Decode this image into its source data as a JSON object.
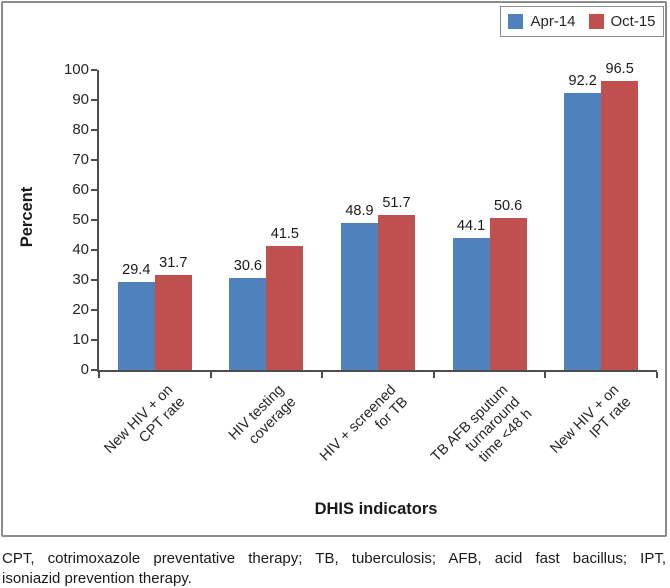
{
  "caption": {
    "line1": "CPT, cotrimoxazole preventative therapy; TB, tuberculosis; AFB, acid fast bacillus; IPT,",
    "line2": "isoniazid prevention therapy."
  },
  "chart_data": {
    "type": "bar",
    "categories": [
      "New HIV + on\nCPT rate",
      "HIV testing\ncoverage",
      "HIV + screened\nfor TB",
      "TB AFB sputum\nturnaround\ntime <48 h",
      "New HIV + on\nIPT rate"
    ],
    "series": [
      {
        "name": "Apr-14",
        "color": "#4F81BD",
        "values": [
          29.4,
          30.6,
          48.9,
          44.1,
          92.2
        ]
      },
      {
        "name": "Oct-15",
        "color": "#C0504D",
        "values": [
          31.7,
          41.5,
          51.7,
          50.6,
          96.5
        ]
      }
    ],
    "xlabel": "DHIS indicators",
    "ylabel": "Percent",
    "ylim": [
      0,
      100
    ],
    "ytick_step": 10,
    "legend_position": "top-right",
    "grid": false,
    "value_labels": true
  }
}
